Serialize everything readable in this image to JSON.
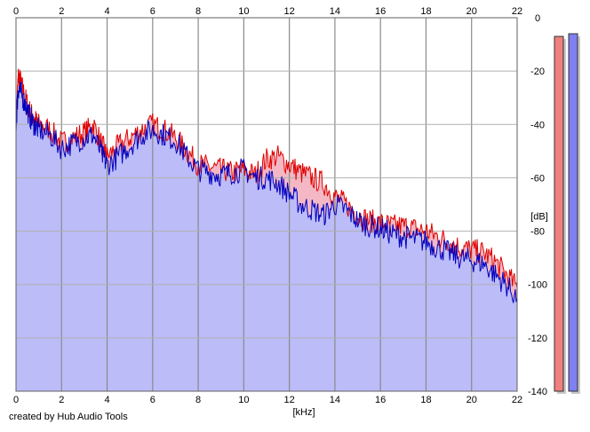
{
  "credit": "created by Hub Audio Tools",
  "chart_data": {
    "type": "area",
    "xlabel": "[kHz]",
    "ylabel": "[dB]",
    "xlim": [
      0,
      22
    ],
    "ylim": [
      -140,
      0
    ],
    "x_ticks": [
      0,
      2,
      4,
      6,
      8,
      10,
      12,
      14,
      16,
      18,
      20,
      22
    ],
    "y_ticks": [
      0,
      -20,
      -40,
      -60,
      -80,
      -100,
      -120,
      -140
    ],
    "x_tick_labels": [
      "0",
      "2",
      "4",
      "6",
      "8",
      "10",
      "12",
      "14",
      "16",
      "18",
      "20",
      "22"
    ],
    "y_tick_labels": [
      "0",
      "-20",
      "-40",
      "-60",
      "-80",
      "-100",
      "-120",
      "-140"
    ],
    "grid": true,
    "series": [
      {
        "color": "#e00000",
        "fill": "#f4b8c4",
        "x": [
          0,
          0.1,
          0.2,
          0.4,
          0.6,
          0.8,
          1.0,
          1.5,
          2.0,
          2.5,
          3.0,
          3.4,
          3.8,
          4.0,
          4.5,
          5.0,
          5.5,
          6.0,
          6.5,
          7.0,
          7.5,
          8.0,
          8.5,
          9.0,
          9.5,
          10.0,
          10.5,
          11.0,
          11.5,
          12.0,
          12.5,
          13.0,
          13.5,
          14.0,
          14.5,
          15.0,
          15.5,
          16.0,
          16.5,
          17.0,
          17.5,
          18.0,
          18.5,
          19.0,
          19.5,
          20.0,
          20.5,
          21.0,
          21.5,
          22.0
        ],
        "values": [
          -38,
          -22,
          -24,
          -30,
          -35,
          -38,
          -40,
          -42,
          -47,
          -45,
          -43,
          -40,
          -48,
          -52,
          -48,
          -45,
          -42,
          -40,
          -42,
          -45,
          -50,
          -55,
          -56,
          -57,
          -58,
          -57,
          -59,
          -53,
          -52,
          -55,
          -58,
          -60,
          -62,
          -67,
          -70,
          -74,
          -76,
          -77,
          -78,
          -78,
          -79,
          -80,
          -82,
          -84,
          -86,
          -87,
          -88,
          -91,
          -96,
          -101
        ]
      },
      {
        "color": "#0000c0",
        "fill": "#bcbcf8",
        "x": [
          0,
          0.1,
          0.2,
          0.4,
          0.6,
          0.8,
          1.0,
          1.5,
          2.0,
          2.5,
          3.0,
          3.4,
          3.8,
          4.0,
          4.5,
          5.0,
          5.5,
          6.0,
          6.5,
          7.0,
          7.5,
          8.0,
          8.5,
          9.0,
          9.5,
          10.0,
          10.5,
          11.0,
          11.5,
          12.0,
          12.5,
          13.0,
          13.5,
          14.0,
          14.5,
          15.0,
          15.5,
          16.0,
          16.5,
          17.0,
          17.5,
          18.0,
          18.5,
          19.0,
          19.5,
          20.0,
          20.5,
          21.0,
          21.5,
          22.0
        ],
        "values": [
          -40,
          -26,
          -28,
          -32,
          -37,
          -40,
          -42,
          -44,
          -49,
          -47,
          -45,
          -44,
          -52,
          -55,
          -52,
          -48,
          -44,
          -42,
          -44,
          -46,
          -52,
          -57,
          -58,
          -59,
          -58,
          -57,
          -60,
          -60,
          -62,
          -66,
          -70,
          -72,
          -74,
          -70,
          -72,
          -76,
          -78,
          -79,
          -81,
          -82,
          -83,
          -84,
          -86,
          -88,
          -90,
          -91,
          -92,
          -96,
          -100,
          -105
        ]
      }
    ],
    "level_meters": [
      {
        "color": "#f08080",
        "value": -7
      },
      {
        "color": "#8080f0",
        "value": -6
      }
    ]
  }
}
